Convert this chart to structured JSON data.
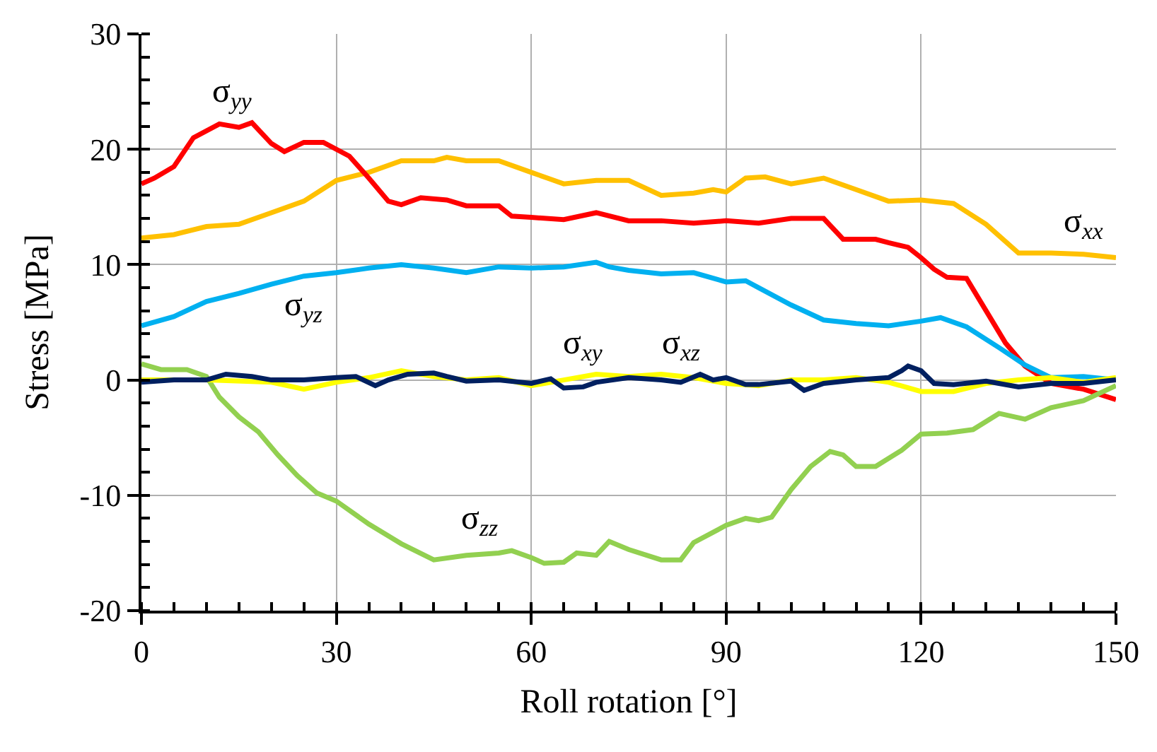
{
  "chart_data": {
    "type": "line",
    "xlabel": "Roll rotation [°]",
    "ylabel": "Stress [MPa]",
    "xlim": [
      0,
      150
    ],
    "xticks": [
      0,
      30,
      60,
      90,
      120,
      150
    ],
    "ylim": [
      -20,
      30
    ],
    "yticks": [
      -20,
      -10,
      0,
      10,
      20,
      30
    ],
    "grid": true,
    "legend": false,
    "marker": "none",
    "line_style": "solid",
    "series": [
      {
        "name": "σ$_{xx}$",
        "color": "#ffc000",
        "x": [
          0,
          5,
          10,
          15,
          20,
          25,
          30,
          35,
          40,
          45,
          47,
          50,
          55,
          60,
          65,
          70,
          75,
          80,
          85,
          88,
          90,
          93,
          96,
          100,
          105,
          110,
          115,
          120,
          125,
          130,
          135,
          140,
          145,
          150
        ],
        "values": [
          12.3,
          12.6,
          13.3,
          13.5,
          14.5,
          15.5,
          17.3,
          18,
          19,
          19,
          19.3,
          19,
          19,
          18,
          17,
          17.3,
          17.3,
          16,
          16.2,
          16.5,
          16.3,
          17.5,
          17.6,
          17,
          17.5,
          16.5,
          15.5,
          15.6,
          15.3,
          13.5,
          11,
          11,
          10.9,
          10.6
        ]
      },
      {
        "name": "σ$_{yy}$",
        "color": "#ff0000",
        "x": [
          0,
          2,
          5,
          8,
          12,
          15,
          17,
          20,
          22,
          25,
          28,
          32,
          35,
          38,
          40,
          43,
          47,
          50,
          55,
          57,
          60,
          65,
          70,
          75,
          80,
          85,
          90,
          95,
          100,
          105,
          108,
          113,
          115,
          118,
          120,
          122,
          124,
          127,
          130,
          133,
          136,
          140,
          145,
          150
        ],
        "values": [
          17,
          17.5,
          18.5,
          21,
          22.2,
          21.9,
          22.3,
          20.5,
          19.8,
          20.6,
          20.6,
          19.4,
          17.5,
          15.5,
          15.2,
          15.8,
          15.6,
          15.1,
          15.1,
          14.2,
          14.1,
          13.9,
          14.5,
          13.8,
          13.8,
          13.6,
          13.8,
          13.6,
          14,
          14,
          12.2,
          12.2,
          11.9,
          11.5,
          10.6,
          9.6,
          8.9,
          8.8,
          6,
          3.2,
          1.2,
          -0.3,
          -0.8,
          -1.7
        ]
      },
      {
        "name": "σ$_{yz}$",
        "color": "#00b0f0",
        "x": [
          0,
          5,
          10,
          15,
          20,
          25,
          30,
          35,
          40,
          45,
          50,
          55,
          60,
          65,
          70,
          72,
          75,
          80,
          85,
          90,
          93,
          95,
          100,
          105,
          110,
          115,
          120,
          123,
          127,
          132,
          136,
          140,
          145,
          150
        ],
        "values": [
          4.7,
          5.5,
          6.8,
          7.5,
          8.3,
          9,
          9.3,
          9.7,
          10,
          9.7,
          9.3,
          9.8,
          9.7,
          9.8,
          10.2,
          9.8,
          9.5,
          9.2,
          9.3,
          8.5,
          8.6,
          8,
          6.5,
          5.2,
          4.9,
          4.7,
          5.1,
          5.4,
          4.6,
          2.8,
          1.3,
          0.2,
          0.3,
          0
        ]
      },
      {
        "name": "σ$_{zz}$",
        "color": "#92d050",
        "x": [
          0,
          3,
          7,
          10,
          12,
          15,
          18,
          21,
          24,
          27,
          30,
          35,
          40,
          45,
          50,
          55,
          57,
          60,
          62,
          65,
          67,
          70,
          72,
          75,
          80,
          83,
          85,
          90,
          93,
          95,
          97,
          100,
          103,
          106,
          108,
          110,
          113,
          117,
          120,
          124,
          128,
          132,
          136,
          140,
          145,
          150
        ],
        "values": [
          1.4,
          0.9,
          0.9,
          0.3,
          -1.5,
          -3.2,
          -4.5,
          -6.5,
          -8.3,
          -9.8,
          -10.5,
          -12.5,
          -14.2,
          -15.6,
          -15.2,
          -15,
          -14.8,
          -15.4,
          -15.9,
          -15.8,
          -15,
          -15.2,
          -14,
          -14.7,
          -15.6,
          -15.6,
          -14.1,
          -12.6,
          -12,
          -12.2,
          -11.9,
          -9.5,
          -7.5,
          -6.2,
          -6.5,
          -7.5,
          -7.5,
          -6.1,
          -4.7,
          -4.6,
          -4.3,
          -2.9,
          -3.4,
          -2.4,
          -1.8,
          -0.5
        ]
      },
      {
        "name": "σ$_{xy}$",
        "color": "#ffff00",
        "x": [
          0,
          10,
          20,
          25,
          30,
          35,
          40,
          45,
          50,
          55,
          60,
          65,
          70,
          75,
          80,
          85,
          90,
          95,
          100,
          105,
          110,
          115,
          120,
          125,
          130,
          135,
          140,
          145,
          150
        ],
        "values": [
          0,
          0,
          -0.2,
          -0.8,
          -0.2,
          0.2,
          0.8,
          0.3,
          0,
          0.2,
          -0.5,
          0,
          0.5,
          0.3,
          0.5,
          0.2,
          -0.3,
          -0.5,
          0,
          0,
          0.2,
          -0.2,
          -1,
          -1,
          -0.3,
          0,
          0.2,
          -0.2,
          0.2
        ]
      },
      {
        "name": "σ$_{xz}$",
        "color": "#002060",
        "x": [
          0,
          5,
          10,
          13,
          17,
          20,
          25,
          30,
          33,
          36,
          38,
          41,
          45,
          47,
          50,
          55,
          60,
          63,
          65,
          68,
          70,
          75,
          80,
          83,
          86,
          88,
          90,
          93,
          95,
          100,
          102,
          105,
          110,
          115,
          117,
          118,
          120,
          122,
          125,
          130,
          135,
          140,
          145,
          150
        ],
        "values": [
          -0.2,
          0,
          0,
          0.5,
          0.3,
          0,
          0,
          0.2,
          0.3,
          -0.5,
          0,
          0.5,
          0.6,
          0.3,
          -0.1,
          0,
          -0.3,
          0.1,
          -0.7,
          -0.6,
          -0.2,
          0.2,
          0,
          -0.2,
          0.5,
          0,
          0.2,
          -0.4,
          -0.4,
          -0.1,
          -0.9,
          -0.3,
          0,
          0.2,
          0.8,
          1.2,
          0.8,
          -0.3,
          -0.4,
          -0.1,
          -0.6,
          -0.3,
          -0.3,
          0
        ]
      }
    ]
  }
}
